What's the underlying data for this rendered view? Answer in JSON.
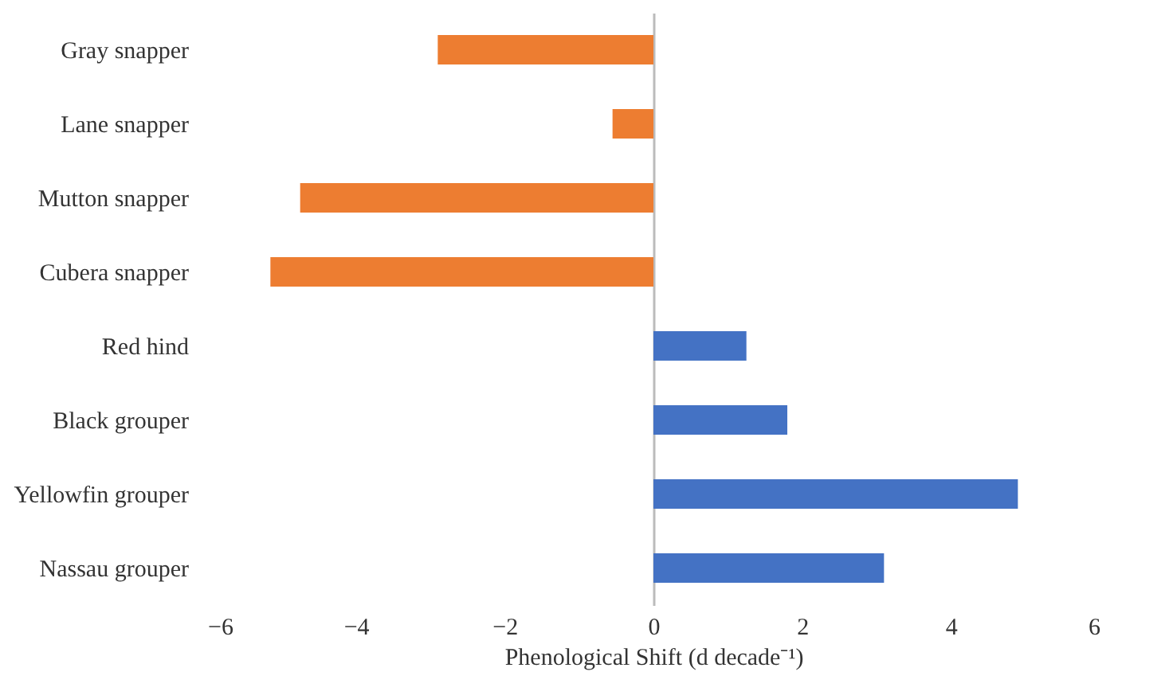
{
  "chart_data": {
    "type": "bar",
    "orientation": "horizontal",
    "xlabel": "Phenological Shift (d decade⁻¹)",
    "categories": [
      "Gray snapper",
      "Lane snapper",
      "Mutton snapper",
      "Cubera snapper",
      "Red hind",
      "Black grouper",
      "Yellowfin grouper",
      "Nassau grouper"
    ],
    "values": [
      -2.9,
      -0.55,
      -4.75,
      -5.15,
      1.25,
      1.8,
      4.9,
      3.1
    ],
    "colors": [
      "#ed7d31",
      "#ed7d31",
      "#ed7d31",
      "#ed7d31",
      "#4472c4",
      "#4472c4",
      "#4472c4",
      "#4472c4"
    ],
    "xlim": [
      -6,
      6
    ],
    "xticks": [
      -6,
      -4,
      -2,
      0,
      2,
      4,
      6
    ]
  }
}
